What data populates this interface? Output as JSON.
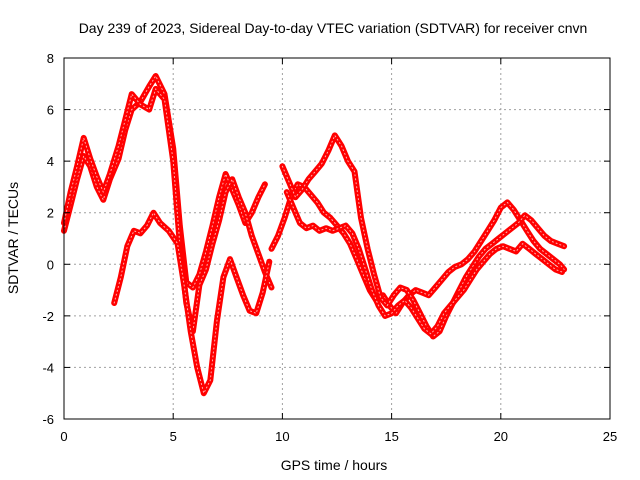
{
  "chart_data": {
    "type": "scatter",
    "title": "Day 239 of 2023, Sidereal Day-to-day VTEC variation (SDTVAR) for receiver cnvn",
    "xlabel": "GPS time / hours",
    "ylabel": "SDTVAR / TECUs",
    "xlim": [
      0,
      25
    ],
    "ylim": [
      -6,
      8
    ],
    "xticks": [
      "0",
      "5",
      "10",
      "15",
      "20",
      "25"
    ],
    "yticks": [
      "-6",
      "-4",
      "-2",
      "0",
      "2",
      "4",
      "6",
      "8"
    ],
    "grid": true,
    "marker": "+",
    "color": "#ff0000",
    "series": [
      {
        "x": [
          0,
          0.3,
          0.6,
          0.9,
          1.2,
          1.5,
          1.8,
          2.1,
          2.5,
          2.8,
          3.1,
          3.5,
          3.9,
          4.2,
          4.6,
          5.0,
          5.3,
          5.6,
          5.9,
          6.2,
          6.5,
          6.8,
          7.1,
          7.4,
          7.7,
          8.0,
          8.3,
          8.6,
          8.9,
          9.2
        ],
        "y": [
          1.3,
          2.3,
          3.3,
          4.2,
          3.8,
          3.0,
          2.5,
          3.3,
          4.1,
          5.2,
          6.0,
          6.3,
          6.9,
          7.3,
          6.6,
          4.5,
          1.5,
          -0.7,
          -0.9,
          -0.4,
          0.5,
          1.5,
          2.6,
          3.5,
          2.9,
          2.3,
          1.6,
          2.0,
          2.6,
          3.1
        ]
      },
      {
        "x": [
          0,
          0.3,
          0.6,
          0.9,
          1.2,
          1.5,
          1.8,
          2.1,
          2.5,
          2.8,
          3.1,
          3.5,
          3.9,
          4.2,
          4.6,
          5.0,
          5.3,
          5.6,
          5.9,
          6.2,
          6.5,
          6.8,
          7.1,
          7.4,
          7.7,
          8.0,
          8.3,
          8.6,
          8.9,
          9.2,
          9.5
        ],
        "y": [
          1.6,
          2.8,
          3.8,
          4.9,
          4.1,
          3.4,
          2.8,
          3.5,
          4.6,
          5.6,
          6.6,
          6.2,
          6.0,
          6.8,
          6.4,
          4.0,
          0.8,
          -1.5,
          -2.6,
          -0.8,
          -0.2,
          0.8,
          1.7,
          2.8,
          3.3,
          2.6,
          2.0,
          1.1,
          0.4,
          -0.3,
          -0.9
        ]
      },
      {
        "x": [
          2.3,
          2.6,
          2.9,
          3.2,
          3.5,
          3.8,
          4.1,
          4.4,
          4.8,
          5.2,
          5.5,
          5.8,
          6.1,
          6.4,
          6.7,
          7.0,
          7.3,
          7.6,
          7.9,
          8.2,
          8.5,
          8.8,
          9.1,
          9.4
        ],
        "y": [
          -1.5,
          -0.5,
          0.7,
          1.3,
          1.2,
          1.5,
          2.0,
          1.6,
          1.3,
          0.8,
          -0.8,
          -2.6,
          -4.0,
          -5.0,
          -4.5,
          -2.2,
          -0.5,
          0.2,
          -0.5,
          -1.2,
          -1.8,
          -1.9,
          -1.1,
          0.1
        ]
      },
      {
        "x": [
          9.5,
          9.8,
          10.1,
          10.4,
          10.7,
          11.0,
          11.3,
          11.6,
          11.9,
          12.2,
          12.5,
          12.8,
          13.1,
          13.4,
          13.7,
          14.0,
          14.3,
          14.6,
          14.9,
          15.2,
          15.5,
          15.8,
          16.1,
          16.4,
          16.7,
          17.0,
          17.3,
          17.6,
          17.9,
          18.2,
          18.5,
          18.8,
          19.1,
          19.4,
          19.7,
          20.0,
          20.3,
          20.6,
          20.9,
          21.2,
          21.5,
          21.8,
          22.1,
          22.4,
          22.7,
          22.9
        ],
        "y": [
          0.6,
          1.1,
          1.8,
          2.6,
          3.1,
          3.0,
          2.7,
          2.4,
          2.0,
          1.8,
          1.5,
          1.2,
          0.8,
          0.2,
          -0.4,
          -1.0,
          -1.4,
          -1.2,
          -1.6,
          -1.9,
          -1.5,
          -1.2,
          -1.0,
          -1.1,
          -1.2,
          -0.9,
          -0.6,
          -0.3,
          -0.1,
          0.0,
          0.2,
          0.5,
          0.9,
          1.3,
          1.7,
          2.2,
          2.4,
          2.1,
          1.7,
          1.3,
          0.9,
          0.6,
          0.4,
          0.2,
          0.0,
          -0.2
        ]
      },
      {
        "x": [
          10.0,
          10.3,
          10.6,
          10.9,
          11.2,
          11.5,
          11.8,
          12.1,
          12.4,
          12.7,
          13.0,
          13.3,
          13.6,
          13.9,
          14.2,
          14.5,
          14.8,
          15.1,
          15.4,
          15.7,
          16.0,
          16.3,
          16.6,
          16.9,
          17.2,
          17.5,
          17.8,
          18.1,
          18.4,
          18.7,
          19.0,
          19.3,
          19.6,
          19.9,
          20.2,
          20.5,
          20.8,
          21.1,
          21.4,
          21.7,
          22.0,
          22.3,
          22.6,
          22.9
        ],
        "y": [
          3.8,
          3.2,
          2.6,
          2.9,
          3.3,
          3.6,
          3.9,
          4.4,
          5.0,
          4.6,
          4.0,
          3.6,
          1.8,
          0.6,
          -0.4,
          -1.3,
          -1.6,
          -1.2,
          -0.9,
          -1.0,
          -1.4,
          -1.9,
          -2.4,
          -2.8,
          -2.6,
          -2.0,
          -1.5,
          -1.0,
          -0.5,
          -0.1,
          0.3,
          0.6,
          0.8,
          1.0,
          1.2,
          1.4,
          1.6,
          1.9,
          1.7,
          1.4,
          1.1,
          0.9,
          0.8,
          0.7
        ]
      },
      {
        "x": [
          10.2,
          10.5,
          10.8,
          11.1,
          11.4,
          11.7,
          12.0,
          12.3,
          12.6,
          12.9,
          13.2,
          13.5,
          13.8,
          14.1,
          14.4,
          14.7,
          15.0,
          15.3,
          15.6,
          15.9,
          16.2,
          16.5,
          16.8,
          17.1,
          17.4,
          17.7,
          18.0,
          18.3,
          18.6,
          18.9,
          19.2,
          19.5,
          19.8,
          20.1,
          20.4,
          20.7,
          21.0,
          21.3,
          21.6,
          21.9,
          22.2,
          22.5,
          22.8
        ],
        "y": [
          2.8,
          2.2,
          1.6,
          1.4,
          1.5,
          1.3,
          1.4,
          1.3,
          1.4,
          1.5,
          1.2,
          0.6,
          -0.2,
          -1.0,
          -1.6,
          -2.0,
          -1.9,
          -1.6,
          -1.4,
          -1.7,
          -2.1,
          -2.5,
          -2.7,
          -2.4,
          -1.9,
          -1.6,
          -1.3,
          -1.0,
          -0.6,
          -0.2,
          0.1,
          0.4,
          0.6,
          0.7,
          0.6,
          0.5,
          0.8,
          0.6,
          0.4,
          0.2,
          0.0,
          -0.2,
          -0.3
        ]
      }
    ]
  }
}
